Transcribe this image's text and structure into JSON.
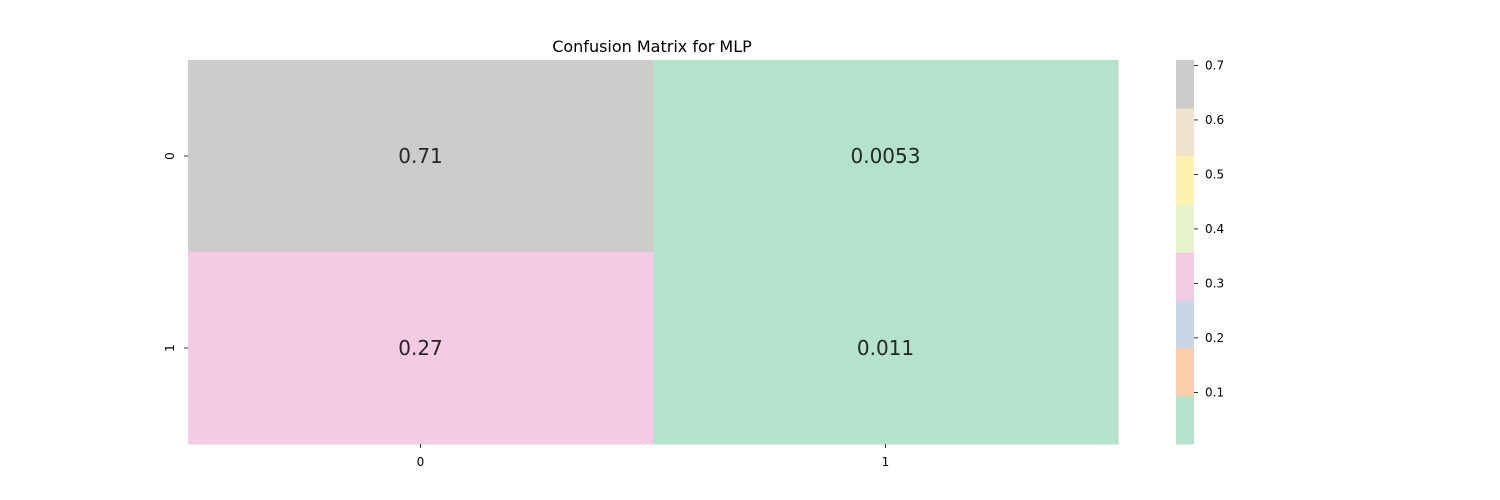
{
  "chart_data": {
    "type": "heatmap",
    "title": "Confusion Matrix for MLP",
    "xlabel": "",
    "ylabel": "",
    "x_categories": [
      "0",
      "1"
    ],
    "y_categories": [
      "0",
      "1"
    ],
    "values": [
      [
        0.71,
        0.0053
      ],
      [
        0.27,
        0.011
      ]
    ],
    "cell_labels": [
      [
        "0.71",
        "0.0053"
      ],
      [
        "0.27",
        "0.011"
      ]
    ],
    "colorbar": {
      "ticks": [
        0.1,
        0.2,
        0.3,
        0.4,
        0.5,
        0.6,
        0.7
      ],
      "tick_labels": [
        "0.1",
        "0.2",
        "0.3",
        "0.4",
        "0.5",
        "0.6",
        "0.7"
      ],
      "range": [
        0.0053,
        0.71
      ]
    },
    "colormap": [
      "#b3e2cd",
      "#fdcdac",
      "#cbd5e8",
      "#f4cae4",
      "#e6f5c9",
      "#fff2ae",
      "#f1e2cc",
      "#cccccc"
    ],
    "grid": false,
    "legend": "colorbar-right"
  }
}
